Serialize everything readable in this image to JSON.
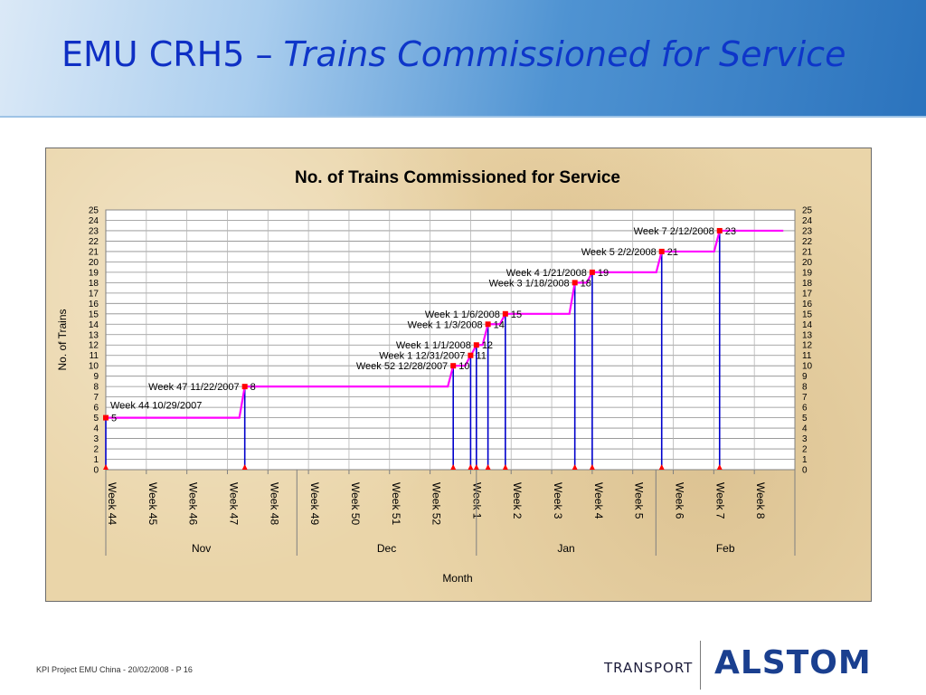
{
  "slide": {
    "title_main": "EMU CRH5 – ",
    "title_sub": "Trains Commissioned for Service",
    "footer": "KPI Project EMU China - 20/02/2008 - P 16",
    "logo_transport": "TRANSPORT",
    "logo_alstom": "ALSTOM"
  },
  "chart_data": {
    "type": "line",
    "title": "No. of Trains Commissioned for Service",
    "xlabel": "Month",
    "ylabel": "No. of Trains",
    "ylim": [
      0,
      25
    ],
    "y_ticks": [
      0,
      1,
      2,
      3,
      4,
      5,
      6,
      7,
      8,
      9,
      10,
      11,
      12,
      13,
      14,
      15,
      16,
      17,
      18,
      19,
      20,
      21,
      22,
      23,
      24,
      25
    ],
    "x_ticks": [
      "Week 44",
      "Week 45",
      "Week 46",
      "Week 47",
      "Week 48",
      "Week 49",
      "Week 50",
      "Week 51",
      "Week 52",
      "Week 1",
      "Week 2",
      "Week 3",
      "Week 4",
      "Week 5",
      "Week 6",
      "Week 7",
      "Week 8"
    ],
    "months": [
      "Nov",
      "Dec",
      "Jan",
      "Feb"
    ],
    "grid": true,
    "colors": {
      "line": "#ff00ff",
      "marker": "#ff0000",
      "drop": "#0000cc"
    },
    "series": [
      {
        "values": [
          {
            "x": "10/29/2007",
            "label": "Week 44 10/29/2007",
            "y": 5
          },
          {
            "x": "11/22/2007",
            "label": "Week 47 11/22/2007",
            "y": 8
          },
          {
            "x": "12/28/2007",
            "label": "Week 52 12/28/2007",
            "y": 10
          },
          {
            "x": "12/31/2007",
            "label": "Week 1 12/31/2007",
            "y": 11
          },
          {
            "x": "1/1/2008",
            "label": "Week 1 1/1/2008",
            "y": 12
          },
          {
            "x": "1/3/2008",
            "label": "Week 1 1/3/2008",
            "y": 14
          },
          {
            "x": "1/6/2008",
            "label": "Week 1 1/6/2008",
            "y": 15
          },
          {
            "x": "1/18/2008",
            "label": "Week 3 1/18/2008",
            "y": 18
          },
          {
            "x": "1/21/2008",
            "label": "Week 4 1/21/2008",
            "y": 19
          },
          {
            "x": "2/2/2008",
            "label": "Week 5 2/2/2008",
            "y": 21
          },
          {
            "x": "2/12/2008",
            "label": "Week 7 2/12/2008",
            "y": 23
          }
        ]
      }
    ]
  }
}
